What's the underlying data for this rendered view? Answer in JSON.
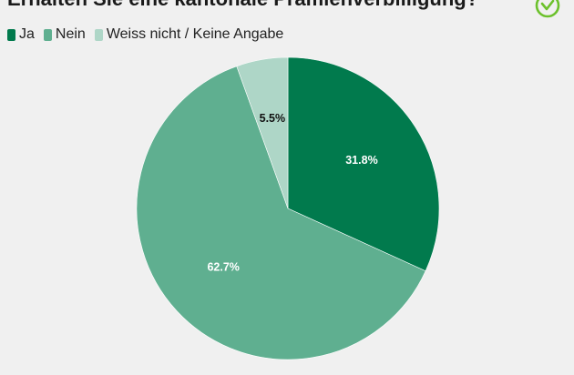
{
  "chart_data": {
    "type": "pie",
    "title": "Erhalten Sie eine kantonale Prämienverbilligung?",
    "legend_position": "top-left",
    "slices": [
      {
        "label": "Ja",
        "value": 31.8,
        "value_label": "31.8%",
        "color": "#017a4d",
        "label_color": "#ffffff"
      },
      {
        "label": "Nein",
        "value": 62.7,
        "value_label": "62.7%",
        "color": "#5faf90",
        "label_color": "#ffffff"
      },
      {
        "label": "Weiss nicht / Keine Angabe",
        "value": 5.5,
        "value_label": "5.5%",
        "color": "#aed6c7",
        "label_color": "#111111"
      }
    ]
  },
  "colors": {
    "background": "#f0f0f0",
    "brand_icon": "#6cc12c"
  },
  "icons": {
    "brand": "check-circle-icon"
  }
}
